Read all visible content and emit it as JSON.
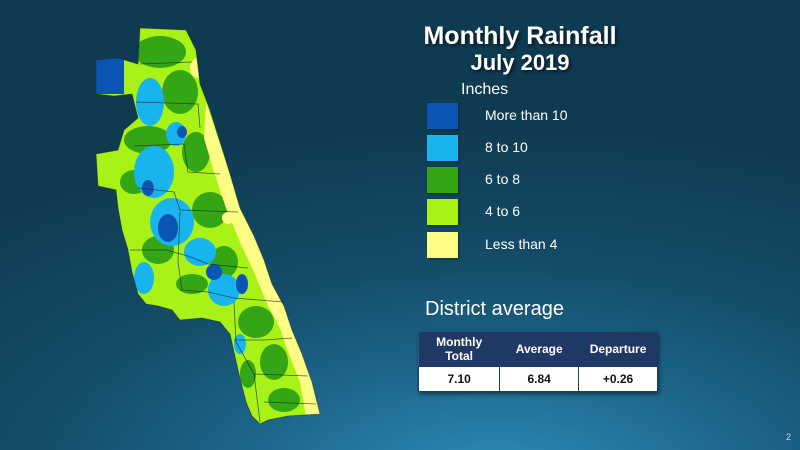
{
  "title": "Monthly Rainfall",
  "subtitle": "July 2019",
  "legend": {
    "unit": "Inches",
    "items": [
      {
        "label": "More than 10",
        "color": "#0b56b4"
      },
      {
        "label": "8 to 10",
        "color": "#18b4ee"
      },
      {
        "label": "6 to 8",
        "color": "#34a514"
      },
      {
        "label": "4 to 6",
        "color": "#a8f218"
      },
      {
        "label": "Less than 4",
        "color": "#fdfd85"
      }
    ]
  },
  "district": {
    "heading": "District average",
    "columns": [
      "Monthly Total",
      "Average",
      "Departure"
    ],
    "values": [
      "7.10",
      "6.84",
      "+0.26"
    ]
  },
  "slide_number": "2"
}
